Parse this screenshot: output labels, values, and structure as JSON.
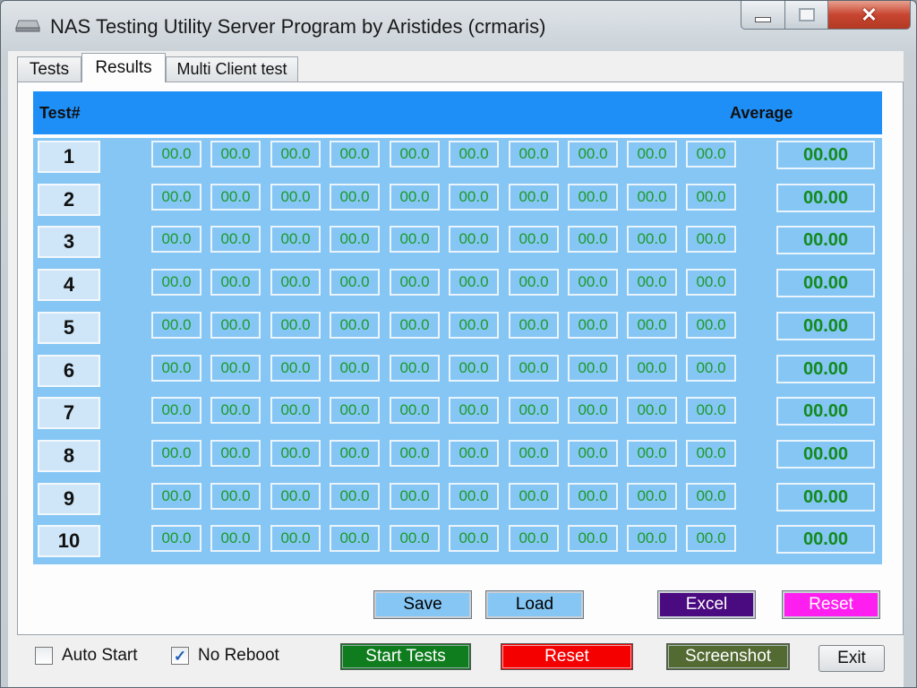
{
  "window": {
    "title": "NAS Testing Utility Server Program by Aristides (crmaris)"
  },
  "tabs": [
    {
      "label": "Tests",
      "active": false
    },
    {
      "label": "Results",
      "active": true
    },
    {
      "label": "Multi Client test",
      "active": false
    }
  ],
  "grid": {
    "header_test": "Test#",
    "header_average": "Average",
    "rows": [
      {
        "num": "1",
        "cells": [
          "00.0",
          "00.0",
          "00.0",
          "00.0",
          "00.0",
          "00.0",
          "00.0",
          "00.0",
          "00.0",
          "00.0"
        ],
        "average": "00.00"
      },
      {
        "num": "2",
        "cells": [
          "00.0",
          "00.0",
          "00.0",
          "00.0",
          "00.0",
          "00.0",
          "00.0",
          "00.0",
          "00.0",
          "00.0"
        ],
        "average": "00.00"
      },
      {
        "num": "3",
        "cells": [
          "00.0",
          "00.0",
          "00.0",
          "00.0",
          "00.0",
          "00.0",
          "00.0",
          "00.0",
          "00.0",
          "00.0"
        ],
        "average": "00.00"
      },
      {
        "num": "4",
        "cells": [
          "00.0",
          "00.0",
          "00.0",
          "00.0",
          "00.0",
          "00.0",
          "00.0",
          "00.0",
          "00.0",
          "00.0"
        ],
        "average": "00.00"
      },
      {
        "num": "5",
        "cells": [
          "00.0",
          "00.0",
          "00.0",
          "00.0",
          "00.0",
          "00.0",
          "00.0",
          "00.0",
          "00.0",
          "00.0"
        ],
        "average": "00.00"
      },
      {
        "num": "6",
        "cells": [
          "00.0",
          "00.0",
          "00.0",
          "00.0",
          "00.0",
          "00.0",
          "00.0",
          "00.0",
          "00.0",
          "00.0"
        ],
        "average": "00.00"
      },
      {
        "num": "7",
        "cells": [
          "00.0",
          "00.0",
          "00.0",
          "00.0",
          "00.0",
          "00.0",
          "00.0",
          "00.0",
          "00.0",
          "00.0"
        ],
        "average": "00.00"
      },
      {
        "num": "8",
        "cells": [
          "00.0",
          "00.0",
          "00.0",
          "00.0",
          "00.0",
          "00.0",
          "00.0",
          "00.0",
          "00.0",
          "00.0"
        ],
        "average": "00.00"
      },
      {
        "num": "9",
        "cells": [
          "00.0",
          "00.0",
          "00.0",
          "00.0",
          "00.0",
          "00.0",
          "00.0",
          "00.0",
          "00.0",
          "00.0"
        ],
        "average": "00.00"
      },
      {
        "num": "10",
        "cells": [
          "00.0",
          "00.0",
          "00.0",
          "00.0",
          "00.0",
          "00.0",
          "00.0",
          "00.0",
          "00.0",
          "00.0"
        ],
        "average": "00.00"
      }
    ]
  },
  "panel_buttons": {
    "save": "Save",
    "load": "Load",
    "excel": "Excel",
    "reset": "Reset"
  },
  "bottom": {
    "auto_start": {
      "label": "Auto Start",
      "checked": false
    },
    "no_reboot": {
      "label": "No Reboot",
      "checked": true
    },
    "start_tests": "Start Tests",
    "reset": "Reset",
    "screenshot": "Screenshot",
    "exit": "Exit"
  },
  "colors": {
    "header_blue": "#1f8ff8",
    "grid_blue": "#85c6f4",
    "value_green": "#1c9a2a",
    "excel_purple": "#4a0a80",
    "reset_magenta": "#ff1ef0",
    "start_green": "#0f7d1e",
    "reset_red": "#f40000",
    "screenshot_olive": "#546a33"
  },
  "icons": {
    "app": "drive-icon",
    "minimize": "minimize-icon",
    "maximize": "maximize-icon",
    "close": "close-icon",
    "checkbox": "check-icon"
  }
}
